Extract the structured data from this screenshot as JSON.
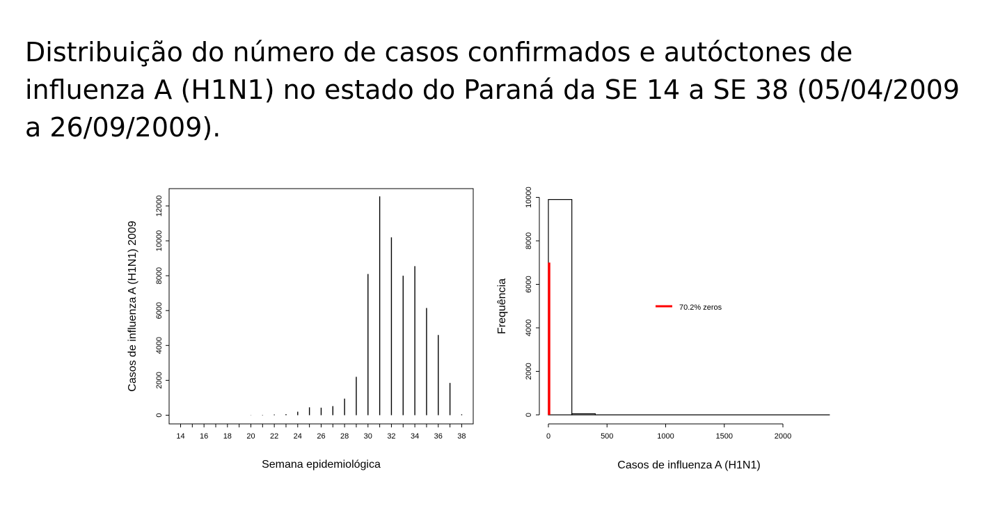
{
  "slide": {
    "title": "Distribuição do número de casos confirmados e autóctones de influenza A (H1N1) no estado do Paraná da SE 14 a SE 38 (05/04/2009 a 26/09/2009)."
  },
  "chart_data": [
    {
      "type": "bar",
      "title": "",
      "xlabel": "Semana epidemiológica",
      "ylabel": "Casos de influenza A (H1N1) 2009",
      "x": [
        14,
        15,
        16,
        17,
        18,
        19,
        20,
        21,
        22,
        23,
        24,
        25,
        26,
        27,
        28,
        29,
        30,
        31,
        32,
        33,
        34,
        35,
        36,
        37,
        38
      ],
      "values": [
        0,
        0,
        0,
        0,
        0,
        0,
        10,
        20,
        40,
        60,
        200,
        450,
        430,
        520,
        950,
        2200,
        8100,
        12550,
        10200,
        8000,
        8550,
        6150,
        4600,
        1850,
        50
      ],
      "xticks": [
        14,
        16,
        18,
        20,
        22,
        24,
        26,
        28,
        30,
        32,
        34,
        36,
        38
      ],
      "yticks": [
        0,
        2000,
        4000,
        6000,
        8000,
        10000,
        12000
      ],
      "xlim": [
        13,
        39
      ],
      "ylim": [
        -500,
        13000
      ],
      "grid": false
    },
    {
      "type": "bar",
      "subtype": "histogram",
      "title": "",
      "xlabel": "Casos de influenza A (H1N1)",
      "ylabel": "Frequência",
      "bins": [
        {
          "from": 0,
          "to": 200,
          "count": 9900
        },
        {
          "from": 200,
          "to": 400,
          "count": 50
        },
        {
          "from": 400,
          "to": 2400,
          "count": 0
        }
      ],
      "zeros_line": {
        "x": 0,
        "count": 7000,
        "color": "#ff0000"
      },
      "legend": {
        "label": "70.2% zeros",
        "color": "#ff0000",
        "placement": "center-right"
      },
      "xticks": [
        0,
        500,
        1000,
        1500,
        2000
      ],
      "yticks": [
        0,
        2000,
        4000,
        6000,
        8000,
        10000
      ],
      "xlim": [
        0,
        2400
      ],
      "ylim": [
        0,
        10000
      ],
      "grid": false
    }
  ]
}
